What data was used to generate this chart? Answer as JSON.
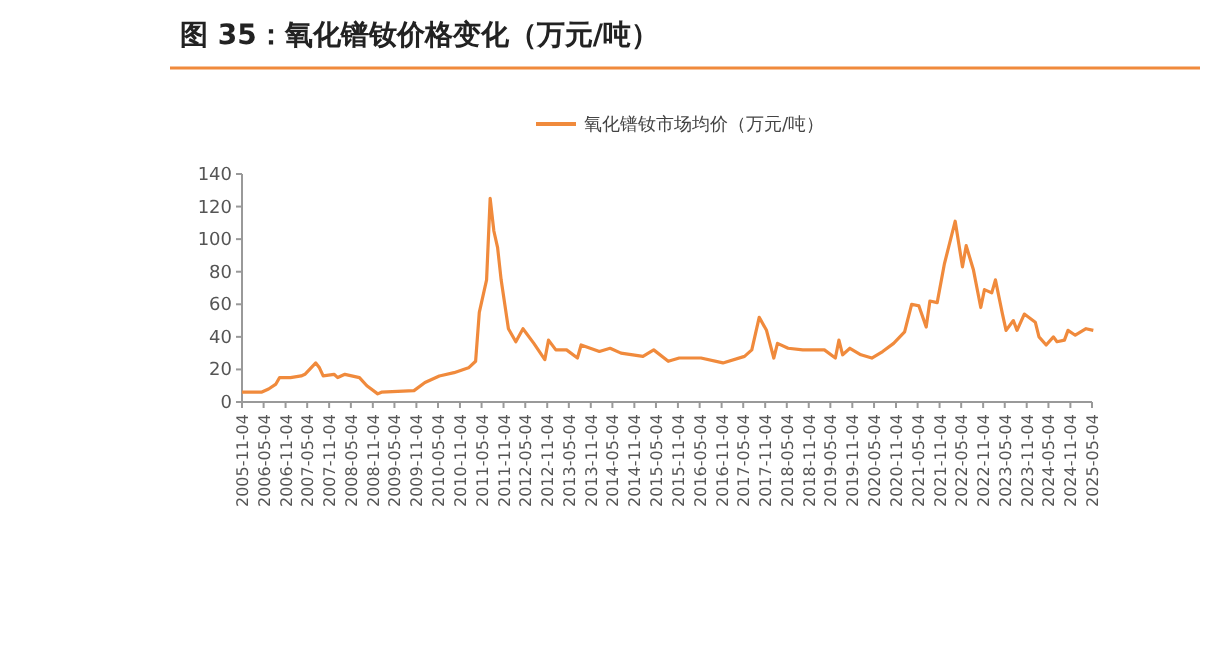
{
  "chart_data": {
    "type": "line",
    "title": "图 35：氧化镨钕价格变化（万元/吨）",
    "legend": "top",
    "marker": "none",
    "line_style": "solid",
    "grid": false,
    "x": [
      "2005-11-04",
      "2006-04",
      "2006-06",
      "2006-08",
      "2006-09",
      "2006-12",
      "2007-03",
      "2007-04",
      "2007-07",
      "2007-08",
      "2007-09",
      "2007-12",
      "2008-01",
      "2008-03",
      "2008-07",
      "2008-09",
      "2008-12",
      "2009-01",
      "2009-10",
      "2010-01",
      "2010-05",
      "2010-09",
      "2011-01",
      "2011-03",
      "2011-04",
      "2011-06",
      "2011-07",
      "2011-08",
      "2011-09",
      "2011-10",
      "2011-12",
      "2012-02",
      "2012-04",
      "2012-07",
      "2012-10",
      "2012-11",
      "2013-01",
      "2013-04",
      "2013-07",
      "2013-08",
      "2014-01",
      "2014-04",
      "2014-07",
      "2015-01",
      "2015-04",
      "2015-08",
      "2015-11",
      "2016-05",
      "2016-11",
      "2017-05",
      "2017-07",
      "2017-09",
      "2017-11",
      "2018-01",
      "2018-02",
      "2018-05",
      "2018-09",
      "2019-03",
      "2019-06",
      "2019-07",
      "2019-08",
      "2019-10",
      "2020-01",
      "2020-04",
      "2020-07",
      "2020-10",
      "2021-01",
      "2021-03",
      "2021-05",
      "2021-07",
      "2021-08",
      "2021-10",
      "2021-12",
      "2022-03",
      "2022-05",
      "2022-06",
      "2022-08",
      "2022-10",
      "2022-11",
      "2023-01",
      "2023-02",
      "2023-04",
      "2023-05",
      "2023-07",
      "2023-08",
      "2023-10",
      "2024-01",
      "2024-02",
      "2024-04",
      "2024-06",
      "2024-07",
      "2024-09",
      "2024-10",
      "2024-12",
      "2025-03",
      "2025-05"
    ],
    "series": [
      {
        "name": "氧化镨钕市场均价（万元/吨）",
        "color": "#f08a3c",
        "values": [
          6,
          6,
          8,
          11,
          15,
          15,
          16,
          17,
          24,
          21,
          16,
          17,
          15,
          17,
          15,
          10,
          5,
          6,
          7,
          12,
          16,
          18,
          21,
          25,
          55,
          75,
          125,
          105,
          95,
          75,
          45,
          37,
          45,
          36,
          26,
          38,
          32,
          32,
          27,
          35,
          31,
          33,
          30,
          28,
          32,
          25,
          27,
          27,
          24,
          28,
          32,
          52,
          44,
          27,
          36,
          33,
          32,
          32,
          27,
          38,
          29,
          33,
          29,
          27,
          31,
          36,
          43,
          60,
          59,
          46,
          62,
          61,
          85,
          111,
          83,
          96,
          81,
          58,
          69,
          67,
          75,
          54,
          44,
          50,
          44,
          54,
          49,
          40,
          35,
          40,
          37,
          38,
          44,
          41,
          45,
          44
        ]
      }
    ],
    "xlim": [
      "2005-11-04",
      "2025-05-04"
    ],
    "xticks": [
      "2005-11-04",
      "2006-05-04",
      "2006-11-04",
      "2007-05-04",
      "2007-11-04",
      "2008-05-04",
      "2008-11-04",
      "2009-05-04",
      "2009-11-04",
      "2010-05-04",
      "2010-11-04",
      "2011-05-04",
      "2011-11-04",
      "2012-05-04",
      "2012-11-04",
      "2013-05-04",
      "2013-11-04",
      "2014-05-04",
      "2014-11-04",
      "2015-05-04",
      "2015-11-04",
      "2016-05-04",
      "2016-11-04",
      "2017-05-04",
      "2017-11-04",
      "2018-05-04",
      "2018-11-04",
      "2019-05-04",
      "2019-11-04",
      "2020-05-04",
      "2020-11-04",
      "2021-05-04",
      "2021-11-04",
      "2022-05-04",
      "2022-11-04",
      "2023-05-04",
      "2023-11-04",
      "2024-05-04",
      "2024-11-04",
      "2025-05-04"
    ],
    "ylim": [
      0,
      140
    ],
    "yticks": [
      0,
      20,
      40,
      60,
      80,
      100,
      120,
      140
    ]
  }
}
